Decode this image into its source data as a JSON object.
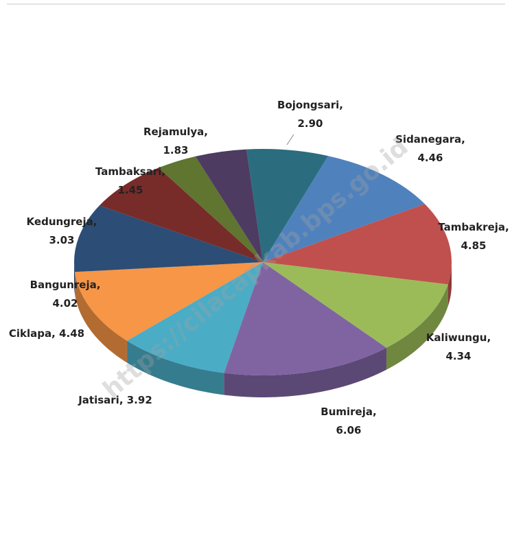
{
  "chart_data": {
    "type": "pie3d",
    "labels": [
      [
        "Bojongsari,",
        "2.90"
      ],
      [
        "Sidanegara,",
        "4.46"
      ],
      [
        "Tambakreja,",
        "4.85"
      ],
      [
        "Kaliwungu,",
        "4.34"
      ],
      [
        "Bumireja,",
        "6.06"
      ],
      [
        "Jatisari, 3.92"
      ],
      [
        "Ciklapa, 4.48"
      ],
      [
        "Bangunreja,",
        "4.02"
      ],
      [
        "Kedungreja,",
        "3.03"
      ],
      [
        "Tambaksari,",
        "1.45"
      ],
      [
        "Rejamulya,",
        "1.83"
      ]
    ],
    "values": [
      2.9,
      4.46,
      4.85,
      4.34,
      6.06,
      3.92,
      4.48,
      4.02,
      3.03,
      1.45,
      1.83
    ],
    "colors": [
      "#2b6d7e",
      "#4f81bd",
      "#c0504d",
      "#9bbb59",
      "#8064a2",
      "#4bacc6",
      "#f79646",
      "#2c4d75",
      "#772c2a",
      "#5f7530",
      "#4d3b62"
    ],
    "watermark": "https://cilacapkab.bps.go.id"
  }
}
